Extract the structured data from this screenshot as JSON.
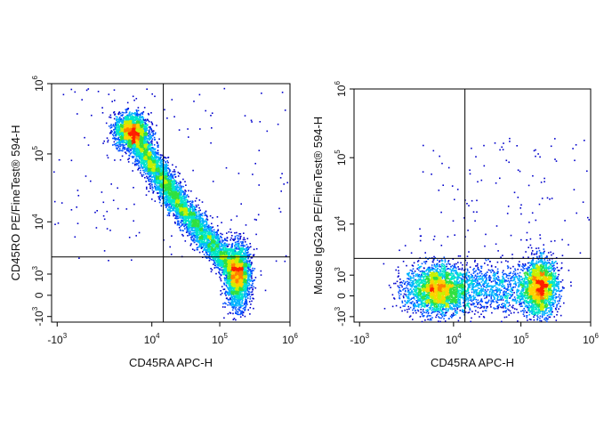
{
  "chart_data": [
    {
      "type": "scatter",
      "title": "",
      "xlabel": "CD45RA APC-H",
      "ylabel": "CD45RO PE/FineTest® 594-H",
      "xscale": "biexponential",
      "yscale": "biexponential",
      "x_ticks": [
        {
          "base": "-10",
          "exp": "3",
          "value": -1000
        },
        {
          "base": "10",
          "exp": "4",
          "value": 10000
        },
        {
          "base": "10",
          "exp": "5",
          "value": 100000
        },
        {
          "base": "10",
          "exp": "6",
          "value": 1000000
        }
      ],
      "y_ticks": [
        {
          "base": "-10",
          "exp": "3",
          "value": -1000
        },
        {
          "base": "0",
          "exp": "",
          "value": 0
        },
        {
          "base": "10",
          "exp": "3",
          "value": 1000
        },
        {
          "base": "10",
          "exp": "4",
          "value": 10000
        },
        {
          "base": "10",
          "exp": "5",
          "value": 100000
        },
        {
          "base": "10",
          "exp": "6",
          "value": 1000000
        }
      ],
      "quadrant_gate": {
        "x": 15000,
        "y": 2500
      },
      "populations": [
        {
          "x": 4500,
          "y": 200000,
          "density": "high"
        },
        {
          "x": 12000,
          "y": 80000,
          "density": "medium"
        },
        {
          "x": 40000,
          "y": 15000,
          "density": "medium"
        },
        {
          "x": 90000,
          "y": 4000,
          "density": "medium"
        },
        {
          "x": 180000,
          "y": 900,
          "density": "high"
        }
      ],
      "grid": false,
      "legend": "none"
    },
    {
      "type": "scatter",
      "title": "",
      "xlabel": "CD45RA APC-H",
      "ylabel": "Mouse IgG2a PE/FineTest® 594-H",
      "xscale": "biexponential",
      "yscale": "biexponential",
      "x_ticks": [
        {
          "base": "-10",
          "exp": "3",
          "value": -1000
        },
        {
          "base": "10",
          "exp": "4",
          "value": 10000
        },
        {
          "base": "10",
          "exp": "5",
          "value": 100000
        },
        {
          "base": "10",
          "exp": "6",
          "value": 1000000
        }
      ],
      "y_ticks": [
        {
          "base": "-10",
          "exp": "3",
          "value": -1000
        },
        {
          "base": "0",
          "exp": "",
          "value": 0
        },
        {
          "base": "10",
          "exp": "3",
          "value": 1000
        },
        {
          "base": "10",
          "exp": "4",
          "value": 10000
        },
        {
          "base": "10",
          "exp": "5",
          "value": 100000
        },
        {
          "base": "10",
          "exp": "6",
          "value": 1000000
        }
      ],
      "quadrant_gate": {
        "x": 15000,
        "y": 2500
      },
      "populations": [
        {
          "x": 5000,
          "y": 250,
          "density": "high"
        },
        {
          "x": 30000,
          "y": 250,
          "density": "low"
        },
        {
          "x": 190000,
          "y": 350,
          "density": "high"
        }
      ],
      "grid": false,
      "legend": "none"
    }
  ]
}
